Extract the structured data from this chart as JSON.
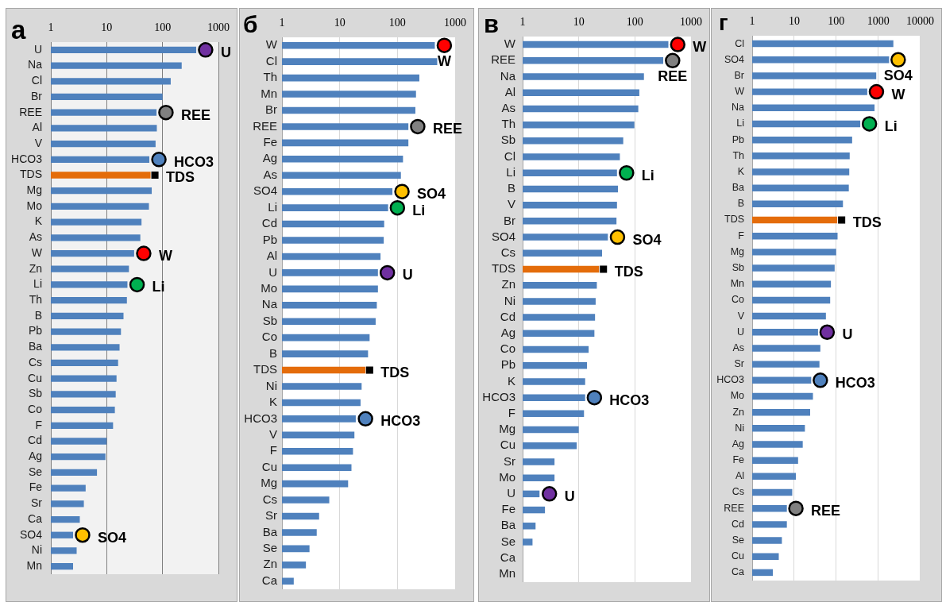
{
  "chart_data": [
    {
      "type": "bar",
      "orientation": "horizontal",
      "title": "а",
      "log": "x",
      "grid": "x",
      "xlim": [
        1,
        1000
      ],
      "xticks": [
        1,
        10,
        100,
        1000
      ],
      "categories": [
        "U",
        "Na",
        "Cl",
        "Br",
        "REE",
        "Al",
        "V",
        "HCO3",
        "TDS",
        "Mg",
        "Mo",
        "K",
        "As",
        "W",
        "Zn",
        "Li",
        "Th",
        "B",
        "Pb",
        "Ba",
        "Cs",
        "Cu",
        "Sb",
        "Co",
        "F",
        "Cd",
        "Ag",
        "Se",
        "Fe",
        "Sr",
        "Ca",
        "SO4",
        "Ni",
        "Mn"
      ],
      "series": [
        {
          "type": "bar",
          "values": [
            400,
            220,
            140,
            100,
            78,
            79,
            75,
            58,
            61,
            64,
            57,
            42,
            40,
            31,
            25,
            23.5,
            23,
            20,
            18,
            17,
            16,
            15,
            14.5,
            14,
            13,
            10,
            9.5,
            6.7,
            4.2,
            3.9,
            3.3,
            2.5,
            2.9,
            2.5
          ],
          "colors": [
            "#4f81bd",
            "#4f81bd",
            "#4f81bd",
            "#4f81bd",
            "#4f81bd",
            "#4f81bd",
            "#4f81bd",
            "#4f81bd",
            "#e46c0a",
            "#4f81bd",
            "#4f81bd",
            "#4f81bd",
            "#4f81bd",
            "#4f81bd",
            "#4f81bd",
            "#4f81bd",
            "#4f81bd",
            "#4f81bd",
            "#4f81bd",
            "#4f81bd",
            "#4f81bd",
            "#4f81bd",
            "#4f81bd",
            "#4f81bd",
            "#4f81bd",
            "#4f81bd",
            "#4f81bd",
            "#4f81bd",
            "#4f81bd",
            "#4f81bd",
            "#4f81bd",
            "#4f81bd",
            "#4f81bd",
            "#4f81bd"
          ]
        },
        {
          "type": "scatter",
          "name": "U",
          "color": "#7030a0",
          "marker": "circle",
          "x": [
            "U"
          ],
          "values": [
            590
          ]
        },
        {
          "type": "scatter",
          "name": "REE",
          "color": "#808080",
          "marker": "circle",
          "x": [
            "REE"
          ],
          "values": [
            115
          ]
        },
        {
          "type": "scatter",
          "name": "HCO3",
          "color": "#4f81bd",
          "marker": "circle",
          "x": [
            "HCO3"
          ],
          "values": [
            86
          ]
        },
        {
          "type": "scatter",
          "name": "TDS",
          "color": "#000000",
          "marker": "square",
          "x": [
            "TDS"
          ],
          "values": [
            73
          ]
        },
        {
          "type": "scatter",
          "name": "W",
          "color": "#ff0000",
          "marker": "circle",
          "x": [
            "W"
          ],
          "values": [
            46
          ]
        },
        {
          "type": "scatter",
          "name": "Li",
          "color": "#00b050",
          "marker": "circle",
          "x": [
            "Li"
          ],
          "values": [
            35
          ]
        },
        {
          "type": "scatter",
          "name": "SO4",
          "color": "#ffc000",
          "marker": "circle",
          "x": [
            "SO4"
          ],
          "values": [
            3.7
          ]
        }
      ]
    },
    {
      "type": "bar",
      "orientation": "horizontal",
      "title": "б",
      "log": "x",
      "grid": "x",
      "xlim": [
        1,
        1000
      ],
      "xticks": [
        1,
        10,
        100,
        1000
      ],
      "categories": [
        "W",
        "Cl",
        "Th",
        "Mn",
        "Br",
        "REE",
        "Fe",
        "Ag",
        "As",
        "SO4",
        "Li",
        "Cd",
        "Pb",
        "Al",
        "U",
        "Mo",
        "Na",
        "Sb",
        "Co",
        "B",
        "TDS",
        "Ni",
        "K",
        "HCO3",
        "V",
        "F",
        "Cu",
        "Mg",
        "Cs",
        "Sr",
        "Ba",
        "Se",
        "Zn",
        "Ca"
      ],
      "series": [
        {
          "type": "bar",
          "values": [
            445,
            490,
            240,
            210,
            205,
            155,
            155,
            125,
            115,
            82,
            69,
            59,
            58,
            51,
            46,
            46,
            44,
            42,
            33,
            31,
            28,
            24,
            23,
            19,
            18,
            17,
            16,
            14,
            6.6,
            4.4,
            4.0,
            3.0,
            2.6,
            1.6
          ],
          "colors": [
            "#4f81bd",
            "#4f81bd",
            "#4f81bd",
            "#4f81bd",
            "#4f81bd",
            "#4f81bd",
            "#4f81bd",
            "#4f81bd",
            "#4f81bd",
            "#4f81bd",
            "#4f81bd",
            "#4f81bd",
            "#4f81bd",
            "#4f81bd",
            "#4f81bd",
            "#4f81bd",
            "#4f81bd",
            "#4f81bd",
            "#4f81bd",
            "#4f81bd",
            "#e46c0a",
            "#4f81bd",
            "#4f81bd",
            "#4f81bd",
            "#4f81bd",
            "#4f81bd",
            "#4f81bd",
            "#4f81bd",
            "#4f81bd",
            "#4f81bd",
            "#4f81bd",
            "#4f81bd",
            "#4f81bd",
            "#4f81bd"
          ]
        },
        {
          "type": "scatter",
          "name": "W",
          "color": "#ff0000",
          "marker": "circle",
          "x": [
            "W"
          ],
          "values": [
            650
          ]
        },
        {
          "type": "scatter",
          "name": "REE",
          "color": "#808080",
          "marker": "circle",
          "x": [
            "REE"
          ],
          "values": [
            225
          ]
        },
        {
          "type": "scatter",
          "name": "SO4",
          "color": "#ffc000",
          "marker": "circle",
          "x": [
            "SO4"
          ],
          "values": [
            120
          ]
        },
        {
          "type": "scatter",
          "name": "Li",
          "color": "#00b050",
          "marker": "circle",
          "x": [
            "Li"
          ],
          "values": [
            100
          ]
        },
        {
          "type": "scatter",
          "name": "U",
          "color": "#7030a0",
          "marker": "circle",
          "x": [
            "U"
          ],
          "values": [
            67
          ]
        },
        {
          "type": "scatter",
          "name": "TDS",
          "color": "#000000",
          "marker": "square",
          "x": [
            "TDS"
          ],
          "values": [
            33
          ]
        },
        {
          "type": "scatter",
          "name": "HCO3",
          "color": "#4f81bd",
          "marker": "circle",
          "x": [
            "HCO3"
          ],
          "values": [
            28
          ]
        }
      ]
    },
    {
      "type": "bar",
      "orientation": "horizontal",
      "title": "в",
      "log": "x",
      "grid": "x",
      "xlim": [
        1,
        1000
      ],
      "xticks": [
        1,
        10,
        100,
        1000
      ],
      "categories": [
        "W",
        "REE",
        "Na",
        "Al",
        "As",
        "Th",
        "Sb",
        "Cl",
        "Li",
        "B",
        "V",
        "Br",
        "SO4",
        "Cs",
        "TDS",
        "Zn",
        "Ni",
        "Cd",
        "Ag",
        "Co",
        "Pb",
        "K",
        "HCO3",
        "F",
        "Mg",
        "Cu",
        "Sr",
        "Mo",
        "U",
        "Fe",
        "Ba",
        "Se",
        "Ca",
        "Mn"
      ],
      "series": [
        {
          "type": "bar",
          "values": [
            395,
            320,
            145,
            120,
            115,
            98,
            62,
            54,
            48,
            50,
            48,
            47,
            33,
            26,
            23,
            21,
            20,
            19.5,
            19,
            15,
            14,
            13,
            13,
            12.4,
            10,
            9.2,
            3.7,
            3.7,
            2.0,
            2.5,
            1.7,
            1.5,
            null,
            null
          ],
          "colors": [
            "#4f81bd",
            "#4f81bd",
            "#4f81bd",
            "#4f81bd",
            "#4f81bd",
            "#4f81bd",
            "#4f81bd",
            "#4f81bd",
            "#4f81bd",
            "#4f81bd",
            "#4f81bd",
            "#4f81bd",
            "#4f81bd",
            "#4f81bd",
            "#e46c0a",
            "#4f81bd",
            "#4f81bd",
            "#4f81bd",
            "#4f81bd",
            "#4f81bd",
            "#4f81bd",
            "#4f81bd",
            "#4f81bd",
            "#4f81bd",
            "#4f81bd",
            "#4f81bd",
            "#4f81bd",
            "#4f81bd",
            "#4f81bd",
            "#4f81bd",
            "#4f81bd",
            "#4f81bd",
            "#4f81bd",
            "#4f81bd"
          ]
        },
        {
          "type": "scatter",
          "name": "W",
          "color": "#ff0000",
          "marker": "circle",
          "x": [
            "W"
          ],
          "values": [
            580
          ]
        },
        {
          "type": "scatter",
          "name": "REE",
          "color": "#808080",
          "marker": "circle",
          "x": [
            "REE"
          ],
          "values": [
            470
          ]
        },
        {
          "type": "scatter",
          "name": "Li",
          "color": "#00b050",
          "marker": "circle",
          "x": [
            "Li"
          ],
          "values": [
            71
          ]
        },
        {
          "type": "scatter",
          "name": "SO4",
          "color": "#ffc000",
          "marker": "circle",
          "x": [
            "SO4"
          ],
          "values": [
            49
          ]
        },
        {
          "type": "scatter",
          "name": "TDS",
          "color": "#000000",
          "marker": "square",
          "x": [
            "TDS"
          ],
          "values": [
            27.5
          ]
        },
        {
          "type": "scatter",
          "name": "HCO3",
          "color": "#4f81bd",
          "marker": "circle",
          "x": [
            "HCO3"
          ],
          "values": [
            19
          ]
        },
        {
          "type": "scatter",
          "name": "U",
          "color": "#7030a0",
          "marker": "circle",
          "x": [
            "U"
          ],
          "values": [
            3.0
          ]
        }
      ]
    },
    {
      "type": "bar",
      "orientation": "horizontal",
      "title": "г",
      "log": "x",
      "grid": "x",
      "xlim": [
        1,
        10000
      ],
      "xticks": [
        1,
        10,
        100,
        1000,
        10000
      ],
      "categories": [
        "Cl",
        "SO4",
        "Br",
        "W",
        "Na",
        "Li",
        "Pb",
        "Th",
        "K",
        "Ba",
        "B",
        "TDS",
        "F",
        "Mg",
        "Sb",
        "Mn",
        "Co",
        "V",
        "U",
        "As",
        "Sr",
        "HCO3",
        "Mo",
        "Zn",
        "Ni",
        "Ag",
        "Fe",
        "Al",
        "Cs",
        "REE",
        "Cd",
        "Se",
        "Cu",
        "Ca"
      ],
      "series": [
        {
          "type": "bar",
          "values": [
            2300,
            1820,
            900,
            550,
            820,
            375,
            240,
            210,
            205,
            200,
            145,
            106,
            108,
            100,
            92,
            75,
            72,
            57,
            37,
            42,
            40,
            25.5,
            28,
            24,
            18,
            16,
            12.4,
            11,
            9,
            6.7,
            6.7,
            5.1,
            4.3,
            3.1
          ],
          "colors": [
            "#4f81bd",
            "#4f81bd",
            "#4f81bd",
            "#4f81bd",
            "#4f81bd",
            "#4f81bd",
            "#4f81bd",
            "#4f81bd",
            "#4f81bd",
            "#4f81bd",
            "#4f81bd",
            "#e46c0a",
            "#4f81bd",
            "#4f81bd",
            "#4f81bd",
            "#4f81bd",
            "#4f81bd",
            "#4f81bd",
            "#4f81bd",
            "#4f81bd",
            "#4f81bd",
            "#4f81bd",
            "#4f81bd",
            "#4f81bd",
            "#4f81bd",
            "#4f81bd",
            "#4f81bd",
            "#4f81bd",
            "#4f81bd",
            "#4f81bd",
            "#4f81bd",
            "#4f81bd",
            "#4f81bd",
            "#4f81bd"
          ]
        },
        {
          "type": "scatter",
          "name": "SO4",
          "color": "#ffc000",
          "marker": "circle",
          "x": [
            "SO4"
          ],
          "values": [
            3000
          ]
        },
        {
          "type": "scatter",
          "name": "W",
          "color": "#ff0000",
          "marker": "circle",
          "x": [
            "W"
          ],
          "values": [
            910
          ]
        },
        {
          "type": "scatter",
          "name": "Li",
          "color": "#00b050",
          "marker": "circle",
          "x": [
            "Li"
          ],
          "values": [
            620
          ]
        },
        {
          "type": "scatter",
          "name": "TDS",
          "color": "#000000",
          "marker": "square",
          "x": [
            "TDS"
          ],
          "values": [
            135
          ]
        },
        {
          "type": "scatter",
          "name": "U",
          "color": "#7030a0",
          "marker": "circle",
          "x": [
            "U"
          ],
          "values": [
            61
          ]
        },
        {
          "type": "scatter",
          "name": "HCO3",
          "color": "#4f81bd",
          "marker": "circle",
          "x": [
            "HCO3"
          ],
          "values": [
            42
          ]
        },
        {
          "type": "scatter",
          "name": "REE",
          "color": "#808080",
          "marker": "circle",
          "x": [
            "REE"
          ],
          "values": [
            11
          ]
        }
      ]
    }
  ]
}
